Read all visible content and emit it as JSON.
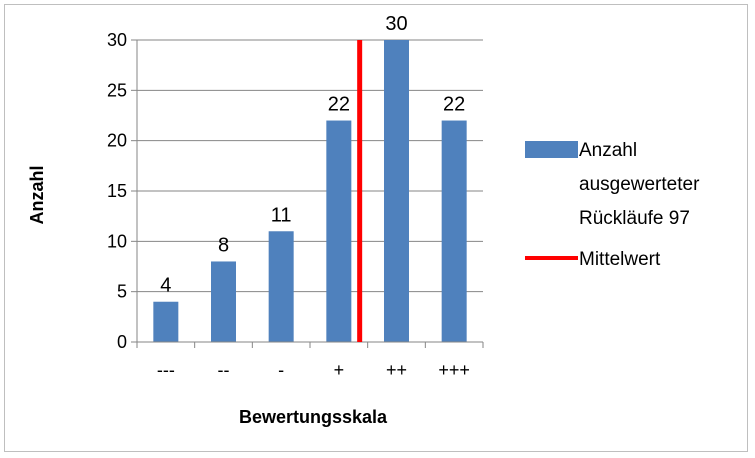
{
  "chart_data": {
    "type": "bar",
    "categories": [
      "---",
      "--",
      "-",
      "+",
      "++",
      "+++"
    ],
    "series": [
      {
        "name": "Anzahl ausgewerteter Rückläufe 97",
        "values": [
          4,
          8,
          11,
          22,
          30,
          22
        ],
        "color": "#4f81bd"
      }
    ],
    "reference_line": {
      "name": "Mittelwert",
      "position": "between + and ++",
      "color": "#ff0000"
    },
    "data_labels": [
      "4",
      "8",
      "11",
      "22",
      "30",
      "22"
    ],
    "xlabel": "Bewertungsskala",
    "ylabel": "Anzahl",
    "ylim": [
      0,
      30
    ],
    "yticks": [
      "0",
      "5",
      "10",
      "15",
      "20",
      "25",
      "30"
    ],
    "grid": true,
    "legend": {
      "position": "right",
      "lines": [
        "Anzahl",
        "ausgewerteter",
        "Rückläufe 97"
      ],
      "mean_label": "Mittelwert"
    }
  }
}
